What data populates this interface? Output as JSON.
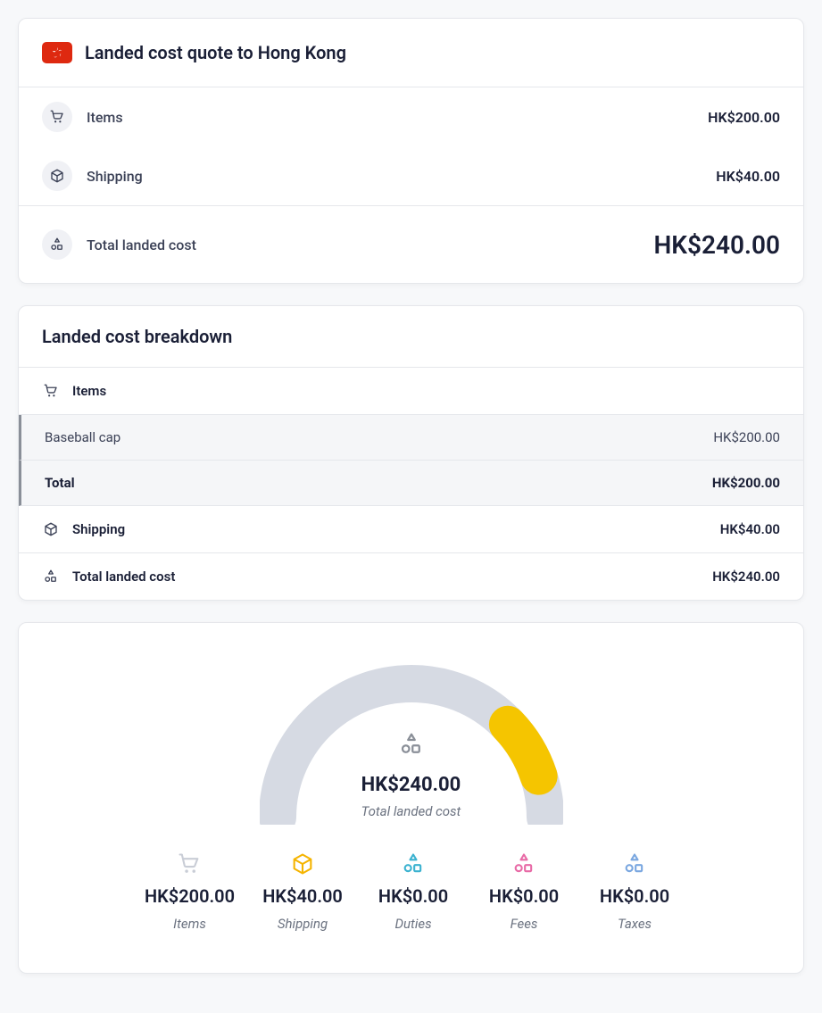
{
  "quote": {
    "title": "Landed cost quote to Hong Kong",
    "flag_bg": "#de2910",
    "rows": [
      {
        "icon": "cart",
        "label": "Items",
        "value": "HK$200.00"
      },
      {
        "icon": "box",
        "label": "Shipping",
        "value": "HK$40.00"
      }
    ],
    "total_label": "Total landed cost",
    "total_value": "HK$240.00"
  },
  "breakdown": {
    "title": "Landed cost breakdown",
    "sections": {
      "items": {
        "icon": "cart",
        "label": "Items",
        "rows": [
          {
            "label": "Baseball cap",
            "value": "HK$200.00",
            "bold": false
          },
          {
            "label": "Total",
            "value": "HK$200.00",
            "bold": true
          }
        ]
      },
      "shipping": {
        "icon": "box",
        "label": "Shipping",
        "value": "HK$40.00"
      },
      "total": {
        "icon": "shapes",
        "label": "Total landed cost",
        "value": "HK$240.00"
      }
    }
  },
  "gauge": {
    "amount": "HK$240.00",
    "sub": "Total landed cost",
    "arc": {
      "bg_color": "#d6dae3",
      "fg_color": "#f5c500",
      "track_width": 42,
      "radius": 150,
      "start_deg": 180,
      "end_deg": 0,
      "highlight_start_deg": 44,
      "highlight_end_deg": 18
    },
    "stats": [
      {
        "icon": "cart",
        "color": "#c9cdd6",
        "value": "HK$200.00",
        "label": "Items"
      },
      {
        "icon": "box",
        "color": "#f5b400",
        "value": "HK$40.00",
        "label": "Shipping"
      },
      {
        "icon": "shapes",
        "color": "#3bb2d0",
        "value": "HK$0.00",
        "label": "Duties"
      },
      {
        "icon": "shapes",
        "color": "#e86aa6",
        "value": "HK$0.00",
        "label": "Fees"
      },
      {
        "icon": "shapes",
        "color": "#7aa7e0",
        "value": "HK$0.00",
        "label": "Taxes"
      }
    ]
  },
  "colors": {
    "text": "#1a1f36",
    "muted": "#6b7280",
    "border": "#e5e7eb",
    "sub_bg": "#f5f6f8",
    "sub_border": "#8a8f98"
  }
}
